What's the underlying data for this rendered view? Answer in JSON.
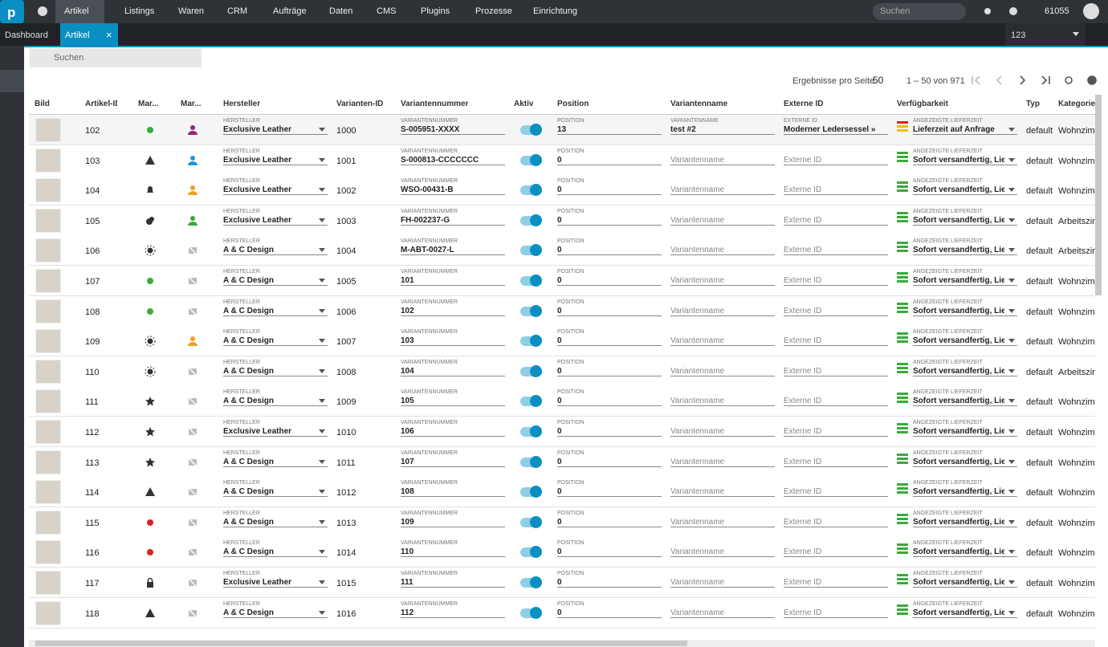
{
  "nav": {
    "items": [
      "Artikel",
      "Listings",
      "Waren",
      "CRM",
      "Aufträge",
      "Daten",
      "CMS",
      "Plugins",
      "Prozesse",
      "Einrichtung"
    ],
    "search": "Suchen",
    "user": "61055"
  },
  "tabs": [
    "Dashboard",
    "Artikel"
  ],
  "selector": "123",
  "toolbar": {
    "search": "Suchen",
    "per_page_label": "Ergebnisse pro Seite",
    "per_page": 50,
    "range": "1 – 50 von 971"
  },
  "table": {
    "headers": [
      "Bild",
      "Artikel-ID",
      "Mar...",
      "Mar...",
      "Hersteller",
      "Varianten-ID",
      "Variantennummer",
      "Aktiv",
      "Position",
      "Variantenname",
      "Externe ID",
      "Verfügbarkeit",
      "Typ",
      "Kategorie"
    ],
    "field_labels": {
      "manufacturer": "HERSTELLER",
      "variant_number": "VARIANTENNUMMER",
      "position": "POSITION",
      "variant_name": "VARIANTENNAME",
      "external_id": "EXTERNE ID",
      "availability": "ANGEZEIGTE LIEFERZEIT"
    },
    "rows": [
      {
        "id": 102,
        "manufacturer": "Exclusive Leather",
        "variant_id": 1000,
        "variant_number": "S-005951-XXXX",
        "position": 13,
        "variant_name": "test #2",
        "external_id": "Moderner Ledersessel »Seattle",
        "availability": "Lieferzeit auf Anfrage",
        "type": "default",
        "category": "Wohnzimm"
      },
      {
        "id": 103,
        "manufacturer": "Exclusive Leather",
        "variant_id": 1001,
        "variant_number": "S-000813-CCCCCCC",
        "position": 0,
        "availability": "Sofort versandfertig, Liefe...",
        "type": "default",
        "category": "Wohnzimm"
      },
      {
        "id": 104,
        "manufacturer": "Exclusive Leather",
        "variant_id": 1002,
        "variant_number": "WSO-00431-B",
        "position": 0,
        "availability": "Sofort versandfertig, Liefe...",
        "type": "default",
        "category": "Wohnzimm"
      },
      {
        "id": 105,
        "manufacturer": "Exclusive Leather",
        "variant_id": 1003,
        "variant_number": "FH-002237-G",
        "position": 0,
        "availability": "Sofort versandfertig, Liefe...",
        "type": "default",
        "category": "Arbeitszim"
      },
      {
        "id": 106,
        "manufacturer": "A & C Design",
        "variant_id": 1004,
        "variant_number": "M-ABT-0027-L",
        "position": 0,
        "availability": "Sofort versandfertig, Liefe...",
        "type": "default",
        "category": "Arbeitszim"
      },
      {
        "id": 107,
        "manufacturer": "A & C Design",
        "variant_id": 1005,
        "variant_number": "101",
        "position": 0,
        "availability": "Sofort versandfertig, Liefe...",
        "type": "default",
        "category": "Wohnzimm"
      },
      {
        "id": 108,
        "manufacturer": "A & C Design",
        "variant_id": 1006,
        "variant_number": "102",
        "position": 0,
        "availability": "Sofort versandfertig, Liefe...",
        "type": "default",
        "category": "Wohnzimm"
      },
      {
        "id": 109,
        "manufacturer": "A & C Design",
        "variant_id": 1007,
        "variant_number": "103",
        "position": 0,
        "availability": "Sofort versandfertig, Liefe...",
        "type": "default",
        "category": "Wohnzimm"
      },
      {
        "id": 110,
        "manufacturer": "A & C Design",
        "variant_id": 1008,
        "variant_number": "104",
        "position": 0,
        "availability": "Sofort versandfertig, Liefe...",
        "type": "default",
        "category": "Arbeitszim"
      },
      {
        "id": 111,
        "manufacturer": "A & C Design",
        "variant_id": 1009,
        "variant_number": "105",
        "position": 0,
        "availability": "Sofort versandfertig, Liefe...",
        "type": "default",
        "category": "Wohnzimm"
      },
      {
        "id": 112,
        "manufacturer": "Exclusive Leather",
        "variant_id": 1010,
        "variant_number": "106",
        "position": 0,
        "availability": "Sofort versandfertig, Liefe...",
        "type": "default",
        "category": "Wohnzimm"
      },
      {
        "id": 113,
        "manufacturer": "A & C Design",
        "variant_id": 1011,
        "variant_number": "107",
        "position": 0,
        "availability": "Sofort versandfertig, Liefe...",
        "type": "default",
        "category": "Wohnzimm"
      },
      {
        "id": 114,
        "manufacturer": "A & C Design",
        "variant_id": 1012,
        "variant_number": "108",
        "position": 0,
        "availability": "Sofort versandfertig, Liefe...",
        "type": "default",
        "category": "Wohnzimm"
      },
      {
        "id": 115,
        "manufacturer": "A & C Design",
        "variant_id": 1013,
        "variant_number": "109",
        "position": 0,
        "availability": "Sofort versandfertig, Liefe...",
        "type": "default",
        "category": "Wohnzimm"
      },
      {
        "id": 116,
        "manufacturer": "A & C Design",
        "variant_id": 1014,
        "variant_number": "110",
        "position": 0,
        "availability": "Sofort versandfertig, Liefe...",
        "type": "default",
        "category": "Wohnzimm"
      },
      {
        "id": 117,
        "manufacturer": "Exclusive Leather",
        "variant_id": 1015,
        "variant_number": "111",
        "position": 0,
        "availability": "Sofort versandfertig, Liefe...",
        "type": "default",
        "category": "Wohnzimm"
      },
      {
        "id": 118,
        "manufacturer": "A & C Design",
        "variant_id": 1016,
        "variant_number": "112",
        "position": 0,
        "availability": "Sofort versandfertig, Liefe...",
        "type": "default",
        "category": "Wohnzimm"
      }
    ]
  }
}
